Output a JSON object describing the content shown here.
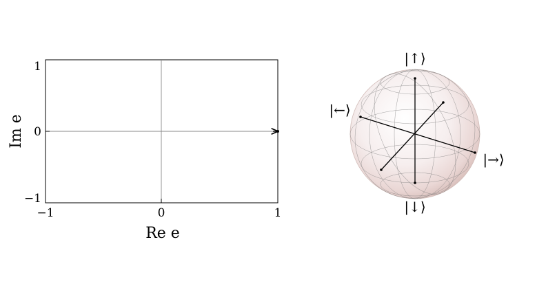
{
  "plot": {
    "xlabel": "Re e",
    "ylabel": "Im e",
    "x_ticks": [
      "−1",
      "0",
      "1"
    ],
    "y_ticks": [
      "1",
      "0",
      "−1"
    ],
    "xlim": [
      -1,
      1
    ],
    "ylim": [
      -1,
      1
    ],
    "point": {
      "re": 1,
      "im": 0
    }
  },
  "bloch": {
    "labels": {
      "up": "|↑⟩",
      "down": "|↓⟩",
      "left": "|←⟩",
      "right": "|→⟩"
    }
  }
}
